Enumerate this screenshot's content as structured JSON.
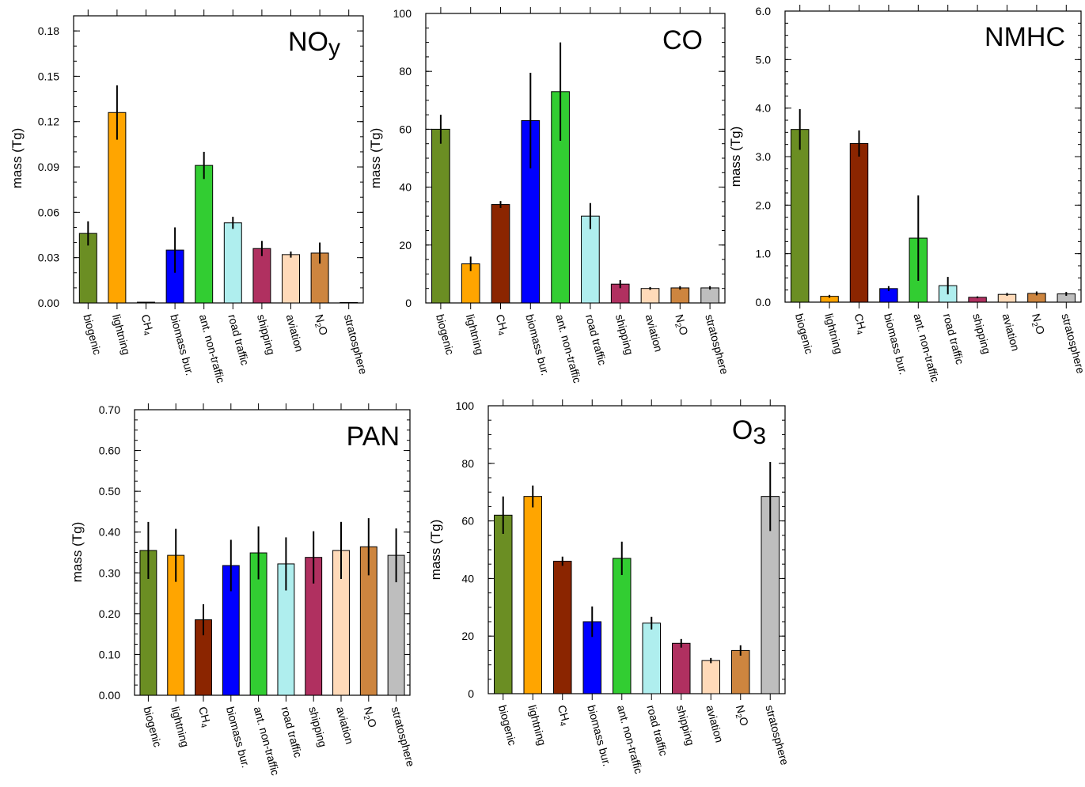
{
  "chart_data": [
    {
      "type": "bar",
      "title": "NOy",
      "ylabel": "mass (Tg)",
      "ylim": [
        0,
        0.19
      ],
      "yticks": [
        0.0,
        0.03,
        0.06,
        0.09,
        0.12,
        0.15,
        0.18
      ],
      "ytick_labels": [
        "0.00",
        "0.03",
        "0.06",
        "0.09",
        "0.12",
        "0.15",
        "0.18"
      ],
      "minor_step": 0.01,
      "categories": [
        "biogenic",
        "lightning",
        "CH4",
        "biomass bur.",
        "ant. non-traffic",
        "road traffic",
        "shipping",
        "aviation",
        "N2O",
        "stratosphere"
      ],
      "values": [
        0.046,
        0.126,
        0.0005,
        0.035,
        0.091,
        0.053,
        0.036,
        0.032,
        0.033,
        0.0003
      ],
      "errors": [
        0.008,
        0.018,
        0.0,
        0.015,
        0.009,
        0.004,
        0.005,
        0.002,
        0.007,
        0.0
      ],
      "grid": false,
      "legend": "none"
    },
    {
      "type": "bar",
      "title": "CO",
      "ylabel": "mass (Tg)",
      "ylim": [
        0,
        100
      ],
      "yticks": [
        0,
        20,
        40,
        60,
        80,
        100
      ],
      "ytick_labels": [
        "0",
        "20",
        "40",
        "60",
        "80",
        "100"
      ],
      "minor_step": 5,
      "categories": [
        "biogenic",
        "lightning",
        "CH4",
        "biomass bur.",
        "ant. non-traffic",
        "road traffic",
        "shipping",
        "aviation",
        "N2O",
        "stratosphere"
      ],
      "values": [
        60,
        13.5,
        34,
        63,
        73,
        30,
        6.5,
        5,
        5.2,
        5.2
      ],
      "errors": [
        5,
        2.5,
        1.2,
        16.5,
        17,
        4.5,
        1.4,
        0.5,
        0.6,
        0.6
      ],
      "grid": false,
      "legend": "none"
    },
    {
      "type": "bar",
      "title": "NMHC",
      "ylabel": "mass (Tg)",
      "ylim": [
        0,
        6
      ],
      "yticks": [
        0,
        1,
        2,
        3,
        4,
        5,
        6
      ],
      "ytick_labels": [
        "0.0",
        "1.0",
        "2.0",
        "3.0",
        "4.0",
        "5.0",
        "6.0"
      ],
      "minor_step": 0.25,
      "categories": [
        "biogenic",
        "lightning",
        "CH4",
        "biomass bur.",
        "ant. non-traffic",
        "road traffic",
        "shipping",
        "aviation",
        "N2O",
        "stratosphere"
      ],
      "values": [
        3.56,
        0.12,
        3.27,
        0.28,
        1.32,
        0.34,
        0.1,
        0.16,
        0.18,
        0.17
      ],
      "errors": [
        0.42,
        0.03,
        0.27,
        0.05,
        0.88,
        0.18,
        0.02,
        0.03,
        0.04,
        0.04
      ],
      "grid": false,
      "legend": "none"
    },
    {
      "type": "bar",
      "title": "PAN",
      "ylabel": "mass (Tg)",
      "ylim": [
        0,
        0.7
      ],
      "yticks": [
        0,
        0.1,
        0.2,
        0.3,
        0.4,
        0.5,
        0.6,
        0.7
      ],
      "ytick_labels": [
        "0.00",
        "0.10",
        "0.20",
        "0.30",
        "0.40",
        "0.50",
        "0.60",
        "0.70"
      ],
      "minor_step": 0.025,
      "categories": [
        "biogenic",
        "lightning",
        "CH4",
        "biomass bur.",
        "ant. non-traffic",
        "road traffic",
        "shipping",
        "aviation",
        "N2O",
        "stratosphere"
      ],
      "values": [
        0.355,
        0.343,
        0.185,
        0.318,
        0.349,
        0.322,
        0.338,
        0.355,
        0.364,
        0.343
      ],
      "errors": [
        0.07,
        0.065,
        0.038,
        0.063,
        0.065,
        0.065,
        0.064,
        0.07,
        0.07,
        0.066
      ],
      "grid": false,
      "legend": "none"
    },
    {
      "type": "bar",
      "title": "O3",
      "ylabel": "mass (Tg)",
      "ylim": [
        0,
        100
      ],
      "yticks": [
        0,
        20,
        40,
        60,
        80,
        100
      ],
      "ytick_labels": [
        "0",
        "20",
        "40",
        "60",
        "80",
        "100"
      ],
      "minor_step": 5,
      "categories": [
        "biogenic",
        "lightning",
        "CH4",
        "biomass bur.",
        "ant. non-traffic",
        "road traffic",
        "shipping",
        "aviation",
        "N2O",
        "stratosphere"
      ],
      "values": [
        62,
        68.5,
        46,
        25,
        47,
        24.5,
        17.5,
        11.5,
        15,
        68.5
      ],
      "errors": [
        6.5,
        3.8,
        1.6,
        5.3,
        5.8,
        2.2,
        1.5,
        0.9,
        1.8,
        12
      ],
      "grid": false,
      "legend": "none"
    }
  ],
  "bar_colors": [
    "#6b8e23",
    "#ffa500",
    "#8b2500",
    "#0000ff",
    "#32cd32",
    "#afeeee",
    "#b03060",
    "#ffdab9",
    "#cd853f",
    "#bebebe"
  ]
}
